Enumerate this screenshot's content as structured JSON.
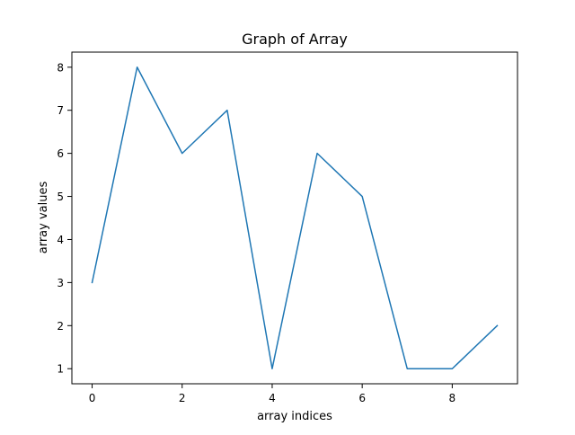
{
  "chart_data": {
    "type": "line",
    "title": "Graph of Array",
    "xlabel": "array indices",
    "ylabel": "array values",
    "x": [
      0,
      1,
      2,
      3,
      4,
      5,
      6,
      7,
      8,
      9
    ],
    "series": [
      {
        "values": [
          3,
          8,
          6,
          7,
          1,
          6,
          5,
          1,
          1,
          2
        ],
        "color": "#1f77b4"
      }
    ],
    "xlim": [
      -0.45,
      9.45
    ],
    "ylim": [
      0.65,
      8.35
    ],
    "xticks": [
      0,
      2,
      4,
      6,
      8
    ],
    "yticks": [
      1,
      2,
      3,
      4,
      5,
      6,
      7,
      8
    ],
    "grid": false,
    "legend": "none"
  }
}
